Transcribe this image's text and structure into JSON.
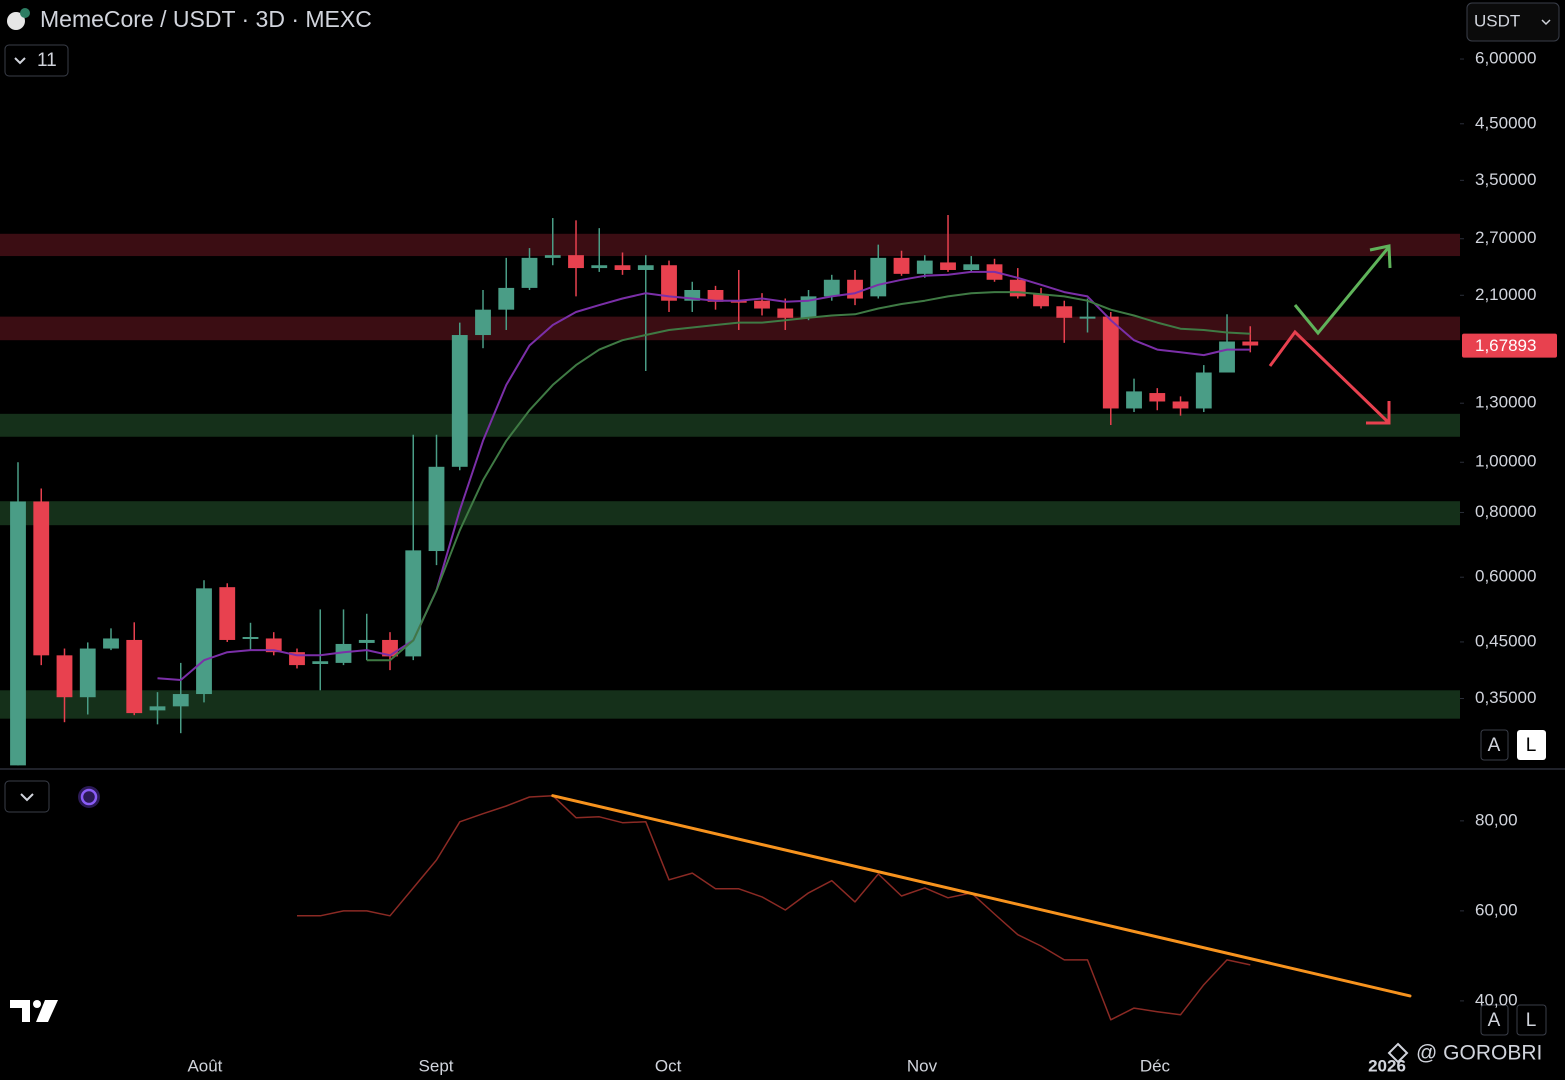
{
  "header": {
    "title": "MemeCore / USDT · 3D · MEXC",
    "indicator_count": 11,
    "currency": "USDT"
  },
  "buttons": [
    "A",
    "L"
  ],
  "watermark": "@ GOROBRI",
  "chart_data": [
    {
      "type": "candlestick",
      "log_scale": true,
      "up_color": "#4a9d86",
      "down_color": "#e8414f",
      "categories": [
        null,
        null,
        null,
        null,
        null,
        null,
        null,
        null,
        null,
        null,
        null,
        null,
        null,
        null,
        null,
        null,
        null,
        null,
        null,
        null,
        null,
        null,
        null,
        null,
        null,
        null,
        null,
        null,
        null,
        null,
        null,
        null,
        null,
        null,
        null,
        null,
        null,
        null,
        null,
        null,
        null,
        null,
        null,
        null,
        null,
        null,
        null,
        null,
        null,
        null,
        null,
        null,
        null,
        null
      ],
      "open": [
        0.26,
        0.84,
        0.424,
        0.352,
        0.437,
        0.454,
        0.332,
        0.338,
        0.357,
        0.574,
        0.46,
        0.457,
        0.43,
        0.408,
        0.41,
        0.448,
        0.454,
        0.422,
        0.674,
        0.98,
        1.76,
        1.97,
        2.17,
        2.48,
        2.51,
        2.37,
        2.4,
        2.35,
        2.4,
        2.05,
        2.15,
        2.05,
        2.05,
        1.98,
        1.9,
        2.09,
        2.25,
        2.09,
        2.48,
        2.31,
        2.43,
        2.35,
        2.41,
        2.25,
        2.11,
        2.0,
        1.91,
        1.91,
        1.27,
        1.36,
        1.31,
        1.27,
        1.49,
        1.71
      ],
      "high": [
        1.0,
        0.89,
        0.437,
        0.449,
        0.478,
        0.491,
        0.36,
        0.41,
        0.592,
        0.584,
        0.49,
        0.47,
        0.437,
        0.52,
        0.52,
        0.51,
        0.47,
        1.13,
        1.13,
        1.86,
        2.15,
        2.48,
        2.59,
        2.96,
        2.93,
        2.83,
        2.54,
        2.51,
        2.45,
        2.23,
        2.19,
        2.35,
        2.12,
        2.07,
        2.15,
        2.3,
        2.35,
        2.63,
        2.56,
        2.51,
        3.0,
        2.5,
        2.47,
        2.37,
        2.17,
        2.05,
        2.07,
        1.95,
        1.45,
        1.39,
        1.34,
        1.54,
        1.93,
        1.83
      ],
      "low": [
        0.26,
        0.406,
        0.315,
        0.326,
        0.434,
        0.325,
        0.312,
        0.3,
        0.344,
        0.45,
        0.434,
        0.424,
        0.4,
        0.363,
        0.406,
        0.415,
        0.397,
        0.415,
        0.633,
        0.965,
        1.66,
        1.8,
        2.15,
        2.4,
        2.09,
        2.33,
        2.3,
        1.5,
        1.95,
        1.95,
        1.97,
        1.8,
        1.92,
        1.8,
        1.88,
        2.05,
        2.01,
        2.07,
        2.29,
        2.27,
        2.33,
        2.33,
        2.23,
        2.07,
        1.98,
        1.7,
        1.78,
        1.18,
        1.25,
        1.26,
        1.23,
        1.25,
        1.49,
        1.63
      ],
      "close": [
        0.84,
        0.424,
        0.352,
        0.437,
        0.457,
        0.328,
        0.338,
        0.357,
        0.571,
        0.454,
        0.46,
        0.43,
        0.406,
        0.413,
        0.446,
        0.454,
        0.422,
        0.676,
        0.98,
        1.76,
        1.97,
        2.17,
        2.48,
        2.51,
        2.37,
        2.4,
        2.35,
        2.4,
        2.05,
        2.15,
        2.04,
        2.04,
        1.98,
        1.9,
        2.09,
        2.25,
        2.07,
        2.48,
        2.31,
        2.45,
        2.35,
        2.41,
        2.25,
        2.09,
        2.0,
        1.9,
        1.91,
        1.27,
        1.37,
        1.31,
        1.27,
        1.49,
        1.71,
        1.68
      ],
      "series": [
        {
          "color": "#7b2fa8",
          "values": [
            null,
            null,
            null,
            null,
            null,
            null,
            0.383,
            0.38,
            0.415,
            0.43,
            0.434,
            0.434,
            0.424,
            0.424,
            0.43,
            0.434,
            0.424,
            0.453,
            0.566,
            0.808,
            1.1,
            1.41,
            1.68,
            1.84,
            1.95,
            2.01,
            2.07,
            2.12,
            2.09,
            2.07,
            2.05,
            2.05,
            2.07,
            2.04,
            2.05,
            2.09,
            2.12,
            2.2,
            2.25,
            2.29,
            2.3,
            2.33,
            2.33,
            2.27,
            2.2,
            2.13,
            2.09,
            1.88,
            1.72,
            1.65,
            1.63,
            1.61,
            1.65,
            1.65
          ]
        },
        {
          "color": "#3f7a44",
          "values": [
            null,
            null,
            null,
            null,
            null,
            null,
            null,
            null,
            null,
            null,
            null,
            null,
            null,
            null,
            null,
            0.415,
            0.415,
            0.453,
            0.566,
            0.739,
            0.923,
            1.1,
            1.26,
            1.41,
            1.54,
            1.65,
            1.72,
            1.76,
            1.8,
            1.82,
            1.84,
            1.86,
            1.86,
            1.88,
            1.9,
            1.92,
            1.93,
            1.98,
            2.02,
            2.05,
            2.09,
            2.12,
            2.13,
            2.13,
            2.11,
            2.09,
            2.05,
            1.97,
            1.92,
            1.86,
            1.81,
            1.8,
            1.78,
            1.77
          ]
        }
      ],
      "zones": [
        {
          "low": 2.5,
          "high": 2.76,
          "color": "#3b0d13"
        },
        {
          "low": 1.72,
          "high": 1.91,
          "color": "#3b0d13"
        },
        {
          "low": 1.12,
          "high": 1.24,
          "color": "#15301a"
        },
        {
          "low": 0.756,
          "high": 0.841,
          "color": "#15301a"
        },
        {
          "low": 0.32,
          "high": 0.363,
          "color": "#15301a"
        }
      ],
      "last_price": 1.67893,
      "last_price_label": "1,67893",
      "xlim": [
        -0.774,
        62.02
      ],
      "ylim": [
        0.257,
        7.8
      ],
      "yticks": [
        {
          "value": 6,
          "label": "6,00000"
        },
        {
          "value": 4.5,
          "label": "4,50000"
        },
        {
          "value": 3.5,
          "label": "3,50000"
        },
        {
          "value": 2.7,
          "label": "2,70000"
        },
        {
          "value": 2.1,
          "label": "2,10000"
        },
        {
          "value": 1.3,
          "label": "1,30000"
        },
        {
          "value": 1,
          "label": "1,00000"
        },
        {
          "value": 0.8,
          "label": "0,80000"
        },
        {
          "value": 0.6,
          "label": "0,60000"
        },
        {
          "value": 0.45,
          "label": "0,45000"
        },
        {
          "value": 0.35,
          "label": "0,35000"
        }
      ],
      "xticks": [
        {
          "value": 8.04,
          "label": "Août"
        },
        {
          "value": 17.98,
          "label": "Sept"
        },
        {
          "value": 27.96,
          "label": "Oct"
        },
        {
          "value": 38.88,
          "label": "Nov"
        },
        {
          "value": 48.9,
          "label": "Déc"
        },
        {
          "value": 58.88,
          "label": "2026"
        }
      ]
    },
    {
      "type": "line",
      "color": "#8b2a24",
      "categories": [
        null,
        null,
        null,
        null,
        null,
        null,
        null,
        null,
        null,
        null,
        null,
        null,
        null,
        null,
        null,
        null,
        null,
        null,
        null,
        null,
        null,
        null,
        null,
        null,
        null,
        null,
        null,
        null,
        null,
        null,
        null,
        null,
        null,
        null,
        null,
        null,
        null,
        null,
        null,
        null,
        null,
        null,
        null,
        null,
        null,
        null,
        null,
        null,
        null,
        null,
        null,
        null,
        null,
        null
      ],
      "values": [
        null,
        null,
        null,
        null,
        null,
        null,
        null,
        null,
        null,
        null,
        null,
        null,
        58.9,
        58.9,
        60,
        60,
        58.9,
        65.1,
        71.3,
        79.8,
        81.6,
        83.3,
        85.3,
        85.6,
        80.7,
        80.9,
        79.6,
        79.8,
        66.9,
        68.4,
        64.9,
        64.9,
        63.1,
        60.2,
        64,
        66.7,
        62,
        68.2,
        63.3,
        65.1,
        62.9,
        64,
        59.3,
        54.7,
        52.2,
        49.1,
        49.1,
        35.8,
        38.4,
        37.6,
        36.9,
        43.6,
        49.1,
        48.0
      ],
      "trendline": {
        "color": "#f7931e",
        "x": [
          23,
          59.87
        ],
        "values": [
          85.6,
          41.1
        ]
      },
      "xlim": [
        -0.774,
        62.02
      ],
      "ylim": [
        30.2,
        91.3
      ],
      "yticks": [
        {
          "value": 80,
          "label": "80,00"
        },
        {
          "value": 60,
          "label": "60,00"
        },
        {
          "value": 40,
          "label": "40,00"
        }
      ]
    }
  ]
}
